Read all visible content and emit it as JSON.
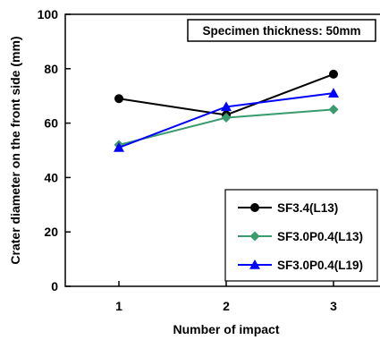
{
  "chart_data": {
    "type": "line",
    "title": "",
    "xlabel": "Number of impact",
    "ylabel": "Crater diameter on the front side (mm)",
    "x": [
      1,
      2,
      3
    ],
    "x_ticks": [
      "1",
      "2",
      "3"
    ],
    "xlim": [
      0.5,
      3.5
    ],
    "ylim": [
      0,
      100
    ],
    "y_ticks": [
      "0",
      "20",
      "40",
      "60",
      "80",
      "100"
    ],
    "grid": false,
    "annotation": "Specimen thickness: 50mm",
    "legend_position": "bottom-right",
    "series": [
      {
        "name": "SF3.4(L13)",
        "values": [
          69,
          63,
          78
        ],
        "color": "#000000",
        "marker": "circle"
      },
      {
        "name": "SF3.0P0.4(L13)",
        "values": [
          52,
          62,
          65
        ],
        "color": "#3a9b6e",
        "marker": "diamond"
      },
      {
        "name": "SF3.0P0.4(L19)",
        "values": [
          51,
          66,
          71
        ],
        "color": "#0000ff",
        "marker": "triangle"
      }
    ]
  }
}
